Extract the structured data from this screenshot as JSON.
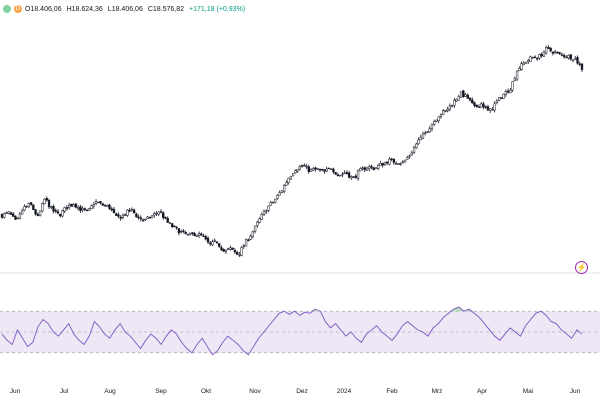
{
  "header": {
    "open": "O18.406,06",
    "high": "H18.624,36",
    "low": "L18.406,06",
    "close": "C18.576,82",
    "change": "+171,18 (+0,93%)",
    "badge_letter": "D"
  },
  "rsi_indicator_label": "",
  "xaxis": {
    "labels": [
      "Jun",
      "Jul",
      "Aug",
      "Sep",
      "Okt",
      "Nov",
      "Dez",
      "2024",
      "Feb",
      "Mrz",
      "Apr",
      "Mai",
      "Jun"
    ]
  },
  "colors": {
    "candle": "#131722",
    "rsi_line": "#7e57c2",
    "rsi_band": "#ede7f6",
    "overbought_fill": "#9fd4a6",
    "change_positive": "#089981"
  },
  "chart_data": {
    "type": "candlestick",
    "price_ylim": [
      15400,
      18850
    ],
    "rsi_ylim": [
      0,
      100
    ],
    "rsi_levels": [
      70,
      50,
      30
    ],
    "price_close_path": [
      16150,
      16180,
      16050,
      16250,
      16300,
      16120,
      16380,
      16220,
      16150,
      16260,
      16310,
      16230,
      16190,
      16340,
      16290,
      16260,
      16110,
      16150,
      16230,
      16120,
      16080,
      16140,
      16210,
      16060,
      15980,
      15920,
      15870,
      15900,
      15860,
      15740,
      15790,
      15650,
      15690,
      15610,
      15780,
      15920,
      16100,
      16250,
      16350,
      16480,
      16660,
      16790,
      16830,
      16760,
      16780,
      16740,
      16800,
      16690,
      16740,
      16650,
      16760,
      16810,
      16790,
      16850,
      16900,
      16880,
      16870,
      16980,
      17150,
      17260,
      17400,
      17520,
      17580,
      17690,
      17820,
      17760,
      17620,
      17680,
      17560,
      17690,
      17800,
      17890,
      18150,
      18240,
      18310,
      18320,
      18420,
      18390,
      18340,
      18330,
      18300,
      18160
    ],
    "rsi_values": [
      48,
      42,
      38,
      52,
      44,
      36,
      40,
      55,
      62,
      58,
      50,
      46,
      52,
      58,
      48,
      42,
      38,
      46,
      60,
      55,
      48,
      44,
      52,
      58,
      50,
      46,
      40,
      34,
      42,
      48,
      44,
      38,
      46,
      52,
      48,
      40,
      34,
      30,
      38,
      44,
      36,
      28,
      32,
      40,
      46,
      42,
      38,
      32,
      28,
      36,
      44,
      50,
      56,
      62,
      68,
      70,
      67,
      70,
      66,
      69,
      68,
      72,
      70,
      60,
      54,
      58,
      52,
      46,
      50,
      44,
      40,
      48,
      52,
      56,
      50,
      46,
      42,
      48,
      56,
      60,
      56,
      52,
      50,
      46,
      54,
      58,
      64,
      68,
      72,
      74,
      70,
      72,
      68,
      64,
      58,
      52,
      46,
      42,
      48,
      54,
      50,
      46,
      56,
      62,
      68,
      70,
      66,
      60,
      58,
      52,
      48,
      44,
      52,
      48
    ]
  }
}
